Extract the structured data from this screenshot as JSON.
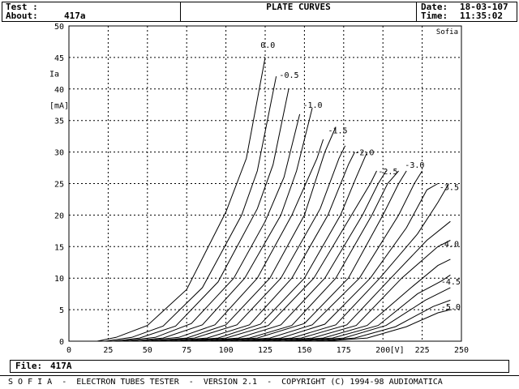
{
  "header": {
    "test_label": "Test :",
    "about_label": "About:",
    "about_value": "417a",
    "title": "PLATE CURVES",
    "date_label": "Date:",
    "date_value": "18-03-107",
    "time_label": "Time:",
    "time_value": "11:35:02"
  },
  "footer": {
    "file_label": "File:",
    "file_value": "417A",
    "status_line": "S O F I A  -  ELECTRON TUBES TESTER  -  VERSION 2.1  -  COPYRIGHT (C) 1994-98 AUDIOMATICA"
  },
  "chart_data": {
    "type": "line",
    "title": "PLATE CURVES",
    "watermark": "Sofia",
    "xlabel": "[V]",
    "ylabel": "Ia",
    "ylabel_unit": "[mA]",
    "xlim": [
      0,
      250
    ],
    "ylim": [
      0,
      50
    ],
    "x_ticks": [
      "0",
      "25",
      "50",
      "75",
      "100",
      "125",
      "150",
      "175",
      "200",
      "225",
      "250"
    ],
    "y_ticks": [
      "0",
      "5",
      "10",
      "15",
      "20",
      "25",
      "30",
      "35",
      "40",
      "45",
      "50"
    ],
    "grid": true,
    "grid_color": "#000000",
    "series": [
      {
        "label": "0.0",
        "points": [
          [
            18,
            0
          ],
          [
            30,
            0.6
          ],
          [
            50,
            2.5
          ],
          [
            75,
            8.2
          ],
          [
            100,
            20.5
          ],
          [
            113,
            29
          ],
          [
            125,
            45
          ]
        ]
      },
      {
        "label": "",
        "points": [
          [
            23,
            0
          ],
          [
            40,
            0.6
          ],
          [
            60,
            2.4
          ],
          [
            85,
            8.5
          ],
          [
            110,
            20
          ],
          [
            120,
            27
          ],
          [
            132,
            42
          ]
        ]
      },
      {
        "label": "-0.5",
        "points": [
          [
            28,
            0
          ],
          [
            45,
            0.5
          ],
          [
            68,
            2.4
          ],
          [
            95,
            9.4
          ],
          [
            120,
            21
          ],
          [
            130,
            28
          ],
          [
            140,
            40
          ]
        ]
      },
      {
        "label": "",
        "points": [
          [
            33,
            0
          ],
          [
            55,
            0.6
          ],
          [
            78,
            2.8
          ],
          [
            105,
            10
          ],
          [
            125,
            19
          ],
          [
            137,
            26
          ],
          [
            147,
            36
          ]
        ]
      },
      {
        "label": "-1.0",
        "points": [
          [
            38,
            0
          ],
          [
            60,
            0.5
          ],
          [
            85,
            2.6
          ],
          [
            112,
            10
          ],
          [
            135,
            20
          ],
          [
            145,
            27
          ],
          [
            155,
            37
          ]
        ]
      },
      {
        "label": "",
        "points": [
          [
            45,
            0
          ],
          [
            70,
            0.6
          ],
          [
            93,
            2.6
          ],
          [
            120,
            10
          ],
          [
            142,
            20
          ],
          [
            158,
            29
          ],
          [
            162,
            32
          ]
        ]
      },
      {
        "label": "-1.5",
        "points": [
          [
            50,
            0
          ],
          [
            75,
            0.5
          ],
          [
            100,
            2.6
          ],
          [
            128,
            10
          ],
          [
            150,
            20
          ],
          [
            163,
            30
          ],
          [
            170,
            34
          ]
        ]
      },
      {
        "label": "",
        "points": [
          [
            55,
            0
          ],
          [
            80,
            0.5
          ],
          [
            107,
            2.6
          ],
          [
            135,
            10
          ],
          [
            160,
            21
          ],
          [
            172,
            29
          ],
          [
            176,
            31
          ]
        ]
      },
      {
        "label": "-2.0",
        "points": [
          [
            62,
            0
          ],
          [
            88,
            0.5
          ],
          [
            115,
            2.6
          ],
          [
            142,
            10
          ],
          [
            165,
            20
          ],
          [
            178,
            28
          ],
          [
            182,
            30
          ]
        ]
      },
      {
        "label": "",
        "points": [
          [
            68,
            0
          ],
          [
            95,
            0.5
          ],
          [
            122,
            2.7
          ],
          [
            150,
            10
          ],
          [
            173,
            20
          ],
          [
            183,
            26
          ],
          [
            190,
            30
          ]
        ]
      },
      {
        "label": "",
        "points": [
          [
            75,
            0
          ],
          [
            100,
            0.5
          ],
          [
            127,
            2.5
          ],
          [
            156,
            10
          ],
          [
            180,
            20
          ],
          [
            192,
            25
          ],
          [
            196,
            27
          ]
        ]
      },
      {
        "label": "-2.5",
        "points": [
          [
            80,
            0
          ],
          [
            108,
            0.5
          ],
          [
            135,
            2.6
          ],
          [
            163,
            10
          ],
          [
            187,
            20
          ],
          [
            197,
            25
          ],
          [
            202,
            27
          ]
        ]
      },
      {
        "label": "",
        "points": [
          [
            87,
            0
          ],
          [
            115,
            0.5
          ],
          [
            142,
            2.5
          ],
          [
            170,
            10
          ],
          [
            193,
            20
          ],
          [
            203,
            25
          ],
          [
            210,
            27
          ]
        ]
      },
      {
        "label": "-3.0",
        "points": [
          [
            93,
            0
          ],
          [
            120,
            0.5
          ],
          [
            150,
            2.8
          ],
          [
            178,
            10
          ],
          [
            200,
            20
          ],
          [
            210,
            25
          ],
          [
            215,
            27
          ]
        ]
      },
      {
        "label": "",
        "points": [
          [
            100,
            0
          ],
          [
            128,
            0.5
          ],
          [
            155,
            2.6
          ],
          [
            185,
            10
          ],
          [
            210,
            20
          ],
          [
            220,
            25
          ],
          [
            225,
            27
          ]
        ]
      },
      {
        "label": "-3.5",
        "points": [
          [
            107,
            0
          ],
          [
            135,
            0.5
          ],
          [
            163,
            2.7
          ],
          [
            192,
            10
          ],
          [
            215,
            18
          ],
          [
            228,
            24
          ],
          [
            235,
            25
          ]
        ]
      },
      {
        "label": "",
        "points": [
          [
            113,
            0
          ],
          [
            142,
            0.5
          ],
          [
            170,
            2.6
          ],
          [
            198,
            10
          ],
          [
            222,
            17
          ],
          [
            235,
            22
          ],
          [
            242,
            25
          ]
        ]
      },
      {
        "label": "",
        "points": [
          [
            120,
            0
          ],
          [
            148,
            0.5
          ],
          [
            177,
            2.6
          ],
          [
            205,
            10
          ],
          [
            228,
            16
          ],
          [
            243,
            19
          ]
        ]
      },
      {
        "label": "-4.0",
        "points": [
          [
            127,
            0
          ],
          [
            155,
            0.5
          ],
          [
            183,
            2.5
          ],
          [
            212,
            10
          ],
          [
            235,
            15
          ],
          [
            243,
            16
          ]
        ]
      },
      {
        "label": "",
        "points": [
          [
            135,
            0
          ],
          [
            162,
            0.5
          ],
          [
            190,
            2.5
          ],
          [
            218,
            8.5
          ],
          [
            235,
            12
          ],
          [
            243,
            13
          ]
        ]
      },
      {
        "label": "",
        "points": [
          [
            140,
            0
          ],
          [
            168,
            0.5
          ],
          [
            197,
            2.5
          ],
          [
            222,
            7.5
          ],
          [
            237,
            9.5
          ],
          [
            243,
            10.5
          ]
        ]
      },
      {
        "label": "-4.5",
        "points": [
          [
            147,
            0
          ],
          [
            175,
            0.5
          ],
          [
            202,
            2.5
          ],
          [
            227,
            6.5
          ],
          [
            243,
            8.5
          ]
        ]
      },
      {
        "label": "",
        "points": [
          [
            155,
            0
          ],
          [
            182,
            0.5
          ],
          [
            208,
            2.3
          ],
          [
            232,
            5.5
          ],
          [
            243,
            6.5
          ]
        ]
      },
      {
        "label": "-5.0",
        "points": [
          [
            162,
            0
          ],
          [
            190,
            0.5
          ],
          [
            215,
            2.3
          ],
          [
            235,
            4.5
          ],
          [
            243,
            5
          ]
        ]
      }
    ],
    "curve_labels": [
      {
        "text": "0.0",
        "x": 122,
        "y": 46.5
      },
      {
        "text": "-0.5",
        "x": 134,
        "y": 41.8
      },
      {
        "text": "-1.0",
        "x": 149,
        "y": 37.0
      },
      {
        "text": "-1.5",
        "x": 165,
        "y": 33.0
      },
      {
        "text": "-2.0",
        "x": 182,
        "y": 29.5
      },
      {
        "text": "-2.5",
        "x": 197,
        "y": 26.5
      },
      {
        "text": "-3.0",
        "x": 214,
        "y": 27.5
      },
      {
        "text": "-3.5",
        "x": 236,
        "y": 24.0
      },
      {
        "text": "-4.0",
        "x": 236,
        "y": 15.0
      },
      {
        "text": "-4.5",
        "x": 237,
        "y": 9.0
      },
      {
        "text": "-5.0",
        "x": 237,
        "y": 5.0
      }
    ]
  }
}
